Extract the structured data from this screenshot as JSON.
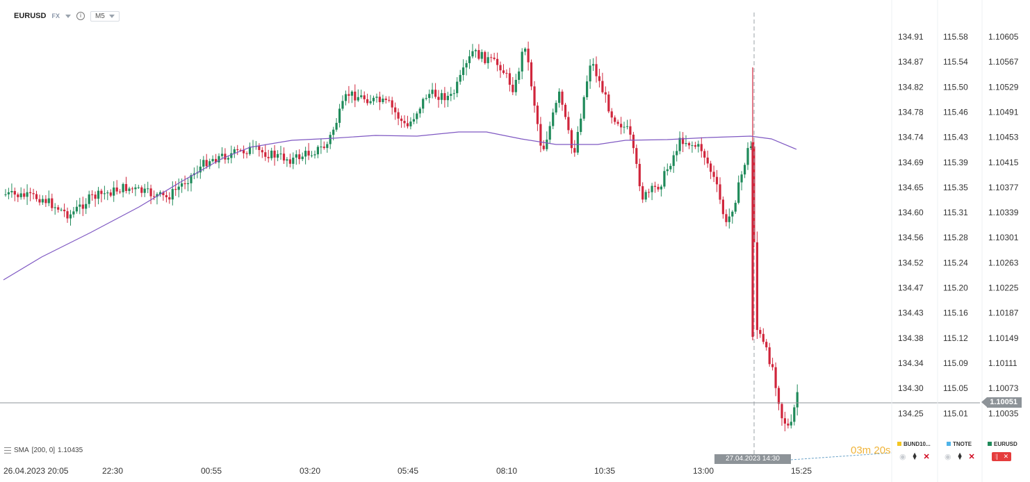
{
  "header": {
    "symbol": "EURUSD",
    "market": "FX",
    "info_icon": "info-icon",
    "timeframe": "M5"
  },
  "colors": {
    "bullish": "#1f8a5a",
    "bearish": "#d0263c",
    "sma": "#7e57c2",
    "grid": "#e8ebef",
    "axis_text": "#333333",
    "price_line": "#8d9398",
    "timer": "#f0b43a"
  },
  "axes": {
    "axis1": [
      "134.91",
      "134.87",
      "134.82",
      "134.78",
      "134.74",
      "134.69",
      "134.65",
      "134.60",
      "134.56",
      "134.52",
      "134.47",
      "134.43",
      "134.38",
      "134.34",
      "134.30",
      "134.25"
    ],
    "axis2": [
      "115.58",
      "115.54",
      "115.50",
      "115.46",
      "115.43",
      "115.39",
      "115.35",
      "115.31",
      "115.28",
      "115.24",
      "115.20",
      "115.16",
      "115.12",
      "115.09",
      "115.05",
      "115.01"
    ],
    "axis3": [
      "1.10605",
      "1.10567",
      "1.10529",
      "1.10491",
      "1.10453",
      "1.10415",
      "1.10377",
      "1.10339",
      "1.10301",
      "1.10263",
      "1.10225",
      "1.10187",
      "1.10149",
      "1.10111",
      "1.10073",
      "1.10035"
    ],
    "time_labels": [
      "26.04.2023  20:05",
      "22:30",
      "00:55",
      "03:20",
      "05:45",
      "08:10",
      "10:35",
      "13:00",
      "15:25"
    ]
  },
  "indicator": {
    "label": "SMA",
    "params": "[200,  0]",
    "value": "1.10435"
  },
  "current_price": "1.10051",
  "crosshair_date": "27.04.2023 14:30",
  "countdown": "03m 20s",
  "legend": [
    {
      "name": "BUND10...",
      "color": "#f3c623"
    },
    {
      "name": "TNOTE",
      "color": "#4fb3e8"
    },
    {
      "name": "EURUSD",
      "color": "#1f8a5a"
    }
  ]
}
